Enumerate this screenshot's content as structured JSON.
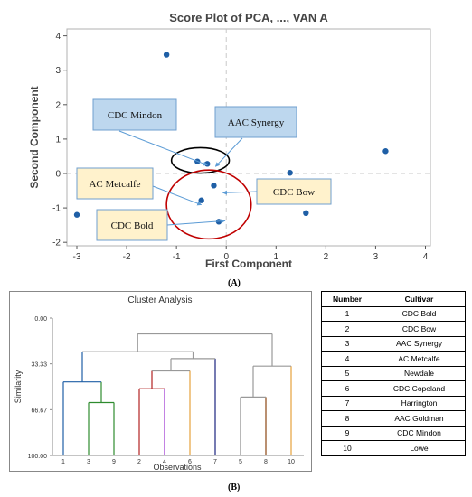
{
  "panels": {
    "a": "(A)",
    "b": "(B)"
  },
  "chart_data": [
    {
      "type": "scatter",
      "title": "Score Plot of PCA, ..., VAN A",
      "xlabel": "First Component",
      "ylabel": "Second Component",
      "xlim": [
        -3.2,
        4.1
      ],
      "ylim": [
        -2.1,
        4.2
      ],
      "xticks": [
        -3,
        -2,
        -1,
        0,
        1,
        2,
        3,
        4
      ],
      "yticks": [
        -2,
        -1,
        0,
        1,
        2,
        3,
        4
      ],
      "reference_lines": {
        "x": 0,
        "y": 0,
        "style": "dashed"
      },
      "point_color": "#1f5fa6",
      "points": [
        {
          "x": -1.2,
          "y": 3.45
        },
        {
          "x": -3.0,
          "y": -1.2
        },
        {
          "x": -0.58,
          "y": 0.35
        },
        {
          "x": -0.38,
          "y": 0.28
        },
        {
          "x": -0.5,
          "y": -0.78
        },
        {
          "x": -0.25,
          "y": -0.35
        },
        {
          "x": -0.15,
          "y": -1.4
        },
        {
          "x": 1.28,
          "y": 0.02
        },
        {
          "x": 1.6,
          "y": -1.15
        },
        {
          "x": 3.2,
          "y": 0.65
        }
      ],
      "callouts": [
        {
          "label": "CDC Mindon",
          "style": "blue",
          "target": [
            -0.58,
            0.35
          ]
        },
        {
          "label": "AAC Synergy",
          "style": "blue",
          "target": [
            -0.38,
            0.28
          ]
        },
        {
          "label": "AC Metcalfe",
          "style": "yellow",
          "target": [
            -0.5,
            -0.78
          ]
        },
        {
          "label": "CDC Bow",
          "style": "yellow",
          "target": [
            -0.25,
            -0.35
          ]
        },
        {
          "label": "CDC Bold",
          "style": "yellow",
          "target": [
            -0.15,
            -1.4
          ]
        }
      ],
      "groupings": [
        {
          "center": [
            -0.52,
            0.38
          ],
          "rx": 0.58,
          "ry": 0.37,
          "color": "#000000"
        },
        {
          "center": [
            -0.35,
            -0.9
          ],
          "rx": 0.85,
          "ry": 1.0,
          "color": "#c00000"
        }
      ]
    },
    {
      "type": "dendrogram",
      "title": "Cluster Analysis",
      "xlabel": "Observations",
      "ylabel": "Similarity",
      "ylim": [
        0,
        100
      ],
      "yticks": [
        "0.00",
        "33.33",
        "66.67",
        "100.00"
      ],
      "leaf_order": [
        "1",
        "3",
        "9",
        "2",
        "4",
        "6",
        "7",
        "5",
        "8",
        "10"
      ],
      "merges": [
        {
          "left": "3",
          "right": "9",
          "similarity": 61.5,
          "color": "#2e8b2e"
        },
        {
          "left": "1",
          "right": "3+9",
          "similarity": 46.5,
          "color": "#1f5fa6"
        },
        {
          "left": "2",
          "right": "4",
          "similarity": 51.5,
          "color": "#b22222"
        },
        {
          "left": "2+4",
          "right": "6",
          "similarity": 38.5,
          "color": "#999999"
        },
        {
          "left": "2+4+6",
          "right": "7",
          "similarity": 29.5,
          "color": "#999999"
        },
        {
          "left": "1+3+9",
          "right": "2+4+6+7",
          "similarity": 24.5,
          "color": "#999999"
        },
        {
          "left": "5",
          "right": "8",
          "similarity": 57.5,
          "color": "#999999"
        },
        {
          "left": "5+8",
          "right": "10",
          "similarity": 35.0,
          "color": "#999999"
        },
        {
          "left": "cluster-1",
          "right": "cluster-2",
          "similarity": 11.5,
          "color": "#999999"
        }
      ],
      "leaf_colors": {
        "1": "#1f5fa6",
        "3": "#2e8b2e",
        "9": "#2e8b2e",
        "2": "#b22222",
        "4": "#9b30d0",
        "6": "#e6a23c",
        "7": "#1a237e",
        "5": "#888888",
        "8": "#8b4513",
        "10": "#e6a23c"
      }
    },
    {
      "type": "table",
      "columns": [
        "Number",
        "Cultivar"
      ],
      "rows": [
        [
          "1",
          "CDC Bold"
        ],
        [
          "2",
          "CDC Bow"
        ],
        [
          "3",
          "AAC Synergy"
        ],
        [
          "4",
          "AC Metcalfe"
        ],
        [
          "5",
          "Newdale"
        ],
        [
          "6",
          "CDC Copeland"
        ],
        [
          "7",
          "Harrington"
        ],
        [
          "8",
          "AAC Goldman"
        ],
        [
          "9",
          "CDC Mindon"
        ],
        [
          "10",
          "Lowe"
        ]
      ]
    }
  ]
}
